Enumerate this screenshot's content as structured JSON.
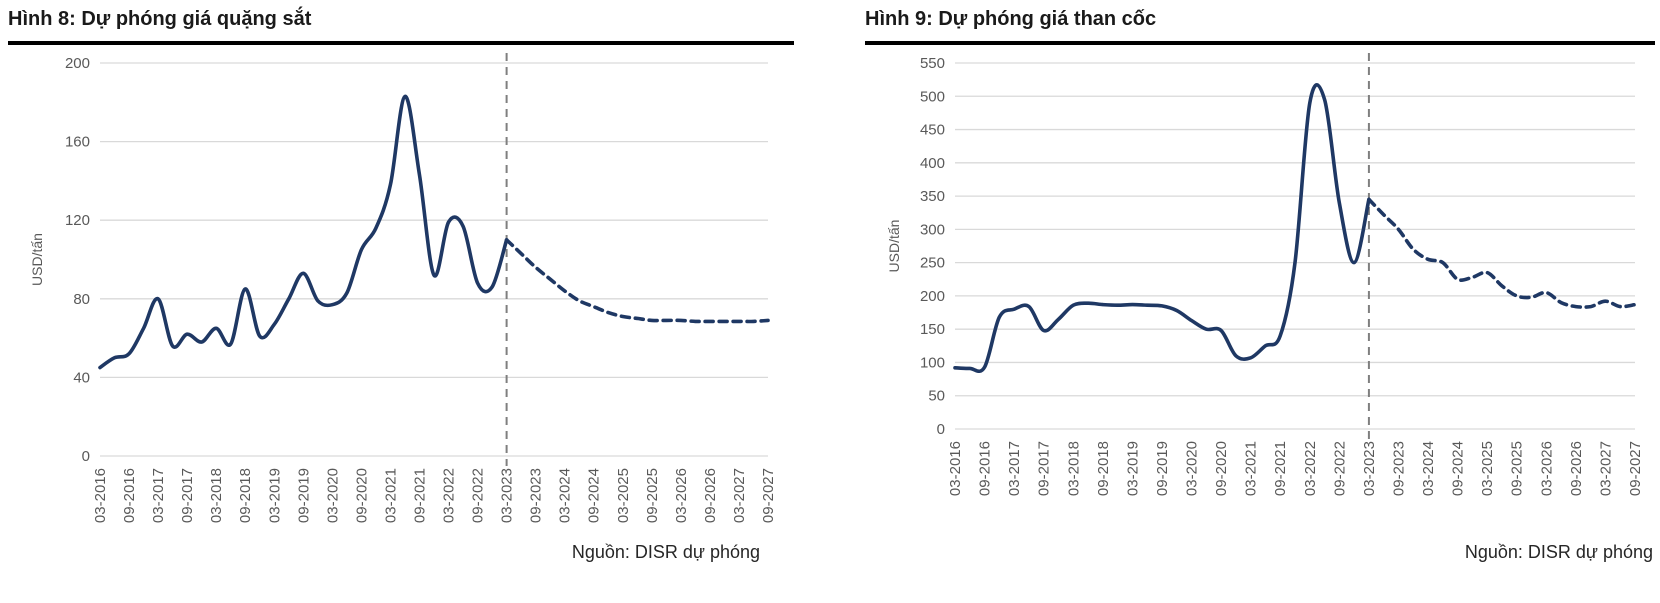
{
  "page": {
    "background": "#ffffff",
    "text_gray": "#595959",
    "grid_color": "#d9d9d9",
    "divider_color": "#7f7f7f",
    "line_color": "#1f3864"
  },
  "chart_data": [
    {
      "type": "line",
      "title": "Hình 8: Dự phóng giá quặng sắt",
      "source": "Nguồn: DISR dự phóng",
      "ylabel": "USD/tấn",
      "ylim": [
        0,
        200
      ],
      "ytick_interval": 40,
      "grid": "horizontal",
      "legend": "none",
      "x_tick_labels": [
        "03-2016",
        "09-2016",
        "03-2017",
        "09-2017",
        "03-2018",
        "09-2018",
        "03-2019",
        "09-2019",
        "03-2020",
        "09-2020",
        "03-2021",
        "09-2021",
        "03-2022",
        "09-2022",
        "03-2023",
        "09-2023",
        "03-2024",
        "09-2024",
        "03-2025",
        "09-2025",
        "03-2026",
        "09-2026",
        "03-2027",
        "09-2027"
      ],
      "points_per_tick_interval": 2,
      "values_quarterly": [
        45,
        50,
        52,
        65,
        80,
        56,
        62,
        58,
        65,
        57,
        85,
        61,
        67,
        80,
        93,
        79,
        77,
        83,
        105,
        116,
        138,
        183,
        143,
        92,
        119,
        117,
        88,
        86,
        110,
        103,
        96,
        90,
        84,
        79,
        76,
        73,
        71,
        70,
        69,
        69,
        69,
        68.5,
        68.5,
        68.5,
        68.5,
        68.5,
        69
      ],
      "forecast_start": {
        "label": "03-2023",
        "point_index": 28
      },
      "forecast_style": "dashed",
      "divider_line": {
        "at_label": "03-2023",
        "style": "dashed",
        "color": "#7f7f7f"
      },
      "line_color": "#1f3864"
    },
    {
      "type": "line",
      "title": "Hình 9: Dự phóng giá than cốc",
      "source": "Nguồn: DISR dự phóng",
      "ylabel": "USD/tấn",
      "ylim": [
        0,
        550
      ],
      "ytick_interval": 50,
      "grid": "horizontal",
      "legend": "none",
      "x_tick_labels": [
        "03-2016",
        "09-2016",
        "03-2017",
        "09-2017",
        "03-2018",
        "09-2018",
        "03-2019",
        "09-2019",
        "03-2020",
        "09-2020",
        "03-2021",
        "09-2021",
        "03-2022",
        "09-2022",
        "03-2023",
        "09-2023",
        "03-2024",
        "09-2024",
        "03-2025",
        "09-2025",
        "03-2026",
        "09-2026",
        "03-2027",
        "09-2027"
      ],
      "points_per_tick_interval": 2,
      "values_quarterly": [
        92,
        91,
        93,
        168,
        180,
        184,
        148,
        165,
        186,
        189,
        187,
        186,
        187,
        186,
        185,
        178,
        163,
        150,
        148,
        110,
        107,
        125,
        140,
        250,
        490,
        495,
        340,
        250,
        345,
        322,
        300,
        270,
        255,
        250,
        225,
        228,
        235,
        215,
        200,
        198,
        205,
        190,
        184,
        184,
        192,
        184,
        187
      ],
      "forecast_start": {
        "label": "03-2023",
        "point_index": 28
      },
      "forecast_style": "dashed",
      "divider_line": {
        "at_label": "03-2023",
        "style": "dashed",
        "color": "#7f7f7f"
      },
      "line_color": "#1f3864"
    }
  ]
}
